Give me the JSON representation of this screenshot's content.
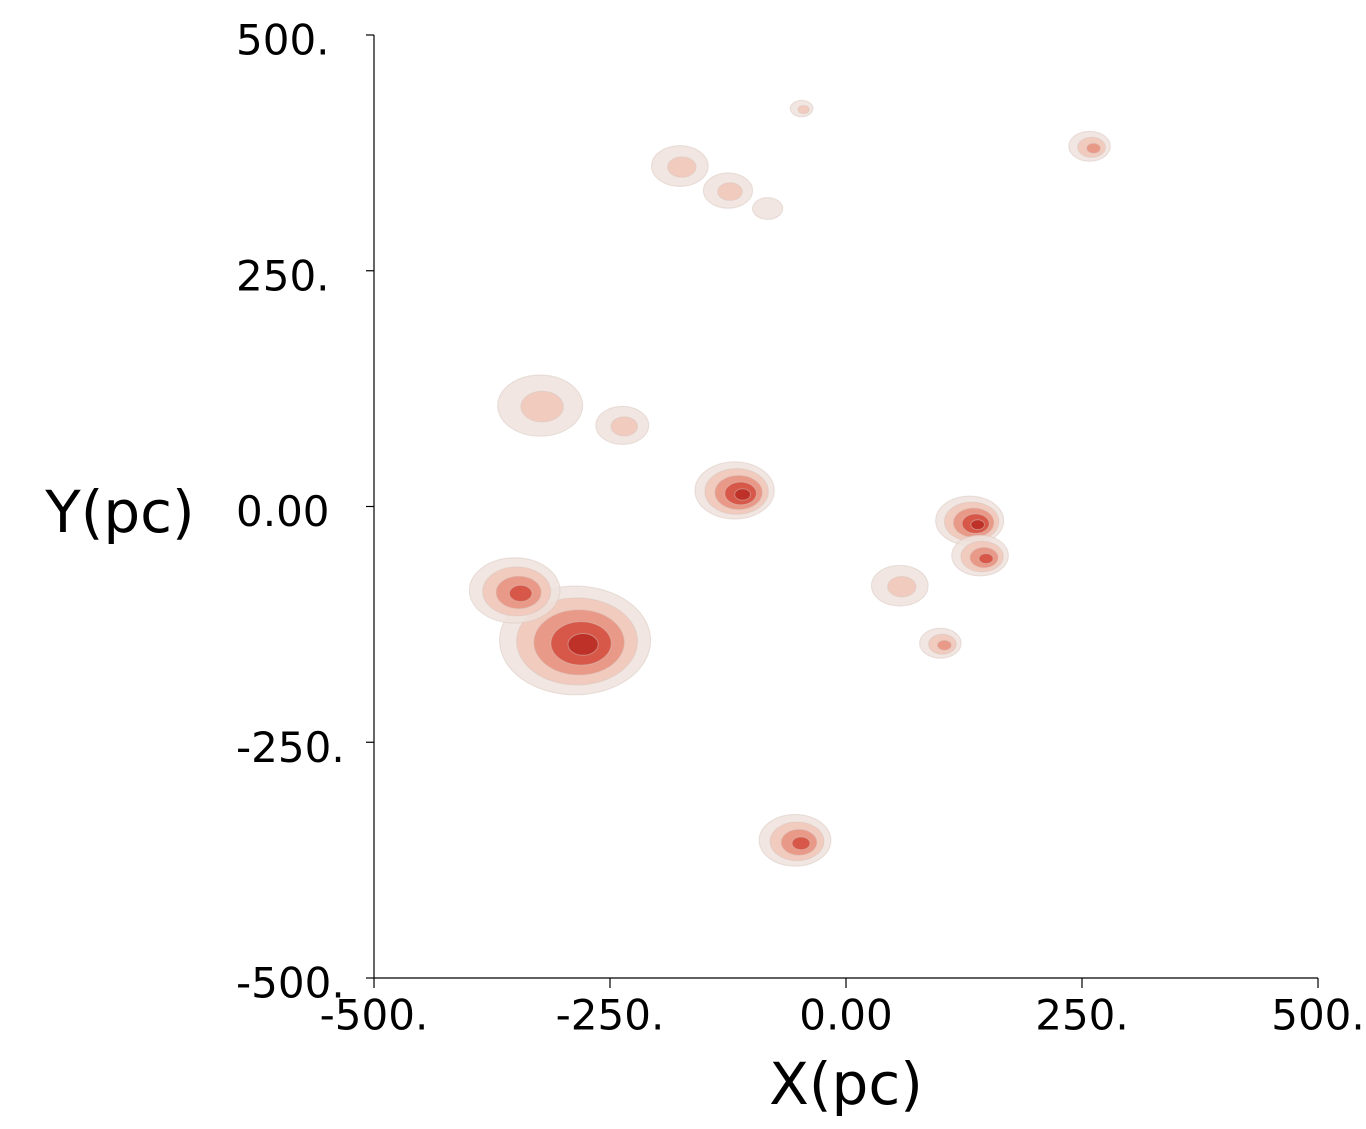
{
  "chart_data": {
    "type": "contour",
    "xlabel": "X(pc)",
    "ylabel": "Y(pc)",
    "xlim": [
      -500,
      500
    ],
    "ylim": [
      -500,
      500
    ],
    "xticks": [
      {
        "value": -500,
        "label": "-500."
      },
      {
        "value": -250,
        "label": "-250."
      },
      {
        "value": 0,
        "label": "0.00"
      },
      {
        "value": 250,
        "label": "250."
      },
      {
        "value": 500,
        "label": "500."
      }
    ],
    "yticks": [
      {
        "value": -500,
        "label": "-500."
      },
      {
        "value": -250,
        "label": "-250."
      },
      {
        "value": 0,
        "label": "0.00"
      },
      {
        "value": 250,
        "label": "250."
      },
      {
        "value": 500,
        "label": "500."
      }
    ],
    "colors": [
      "#efe2dc",
      "#f2c6b8",
      "#e8907e",
      "#d44c3e",
      "#b82a22"
    ],
    "x": [
      -287,
      -351,
      -118,
      131,
      142,
      57,
      100,
      -54,
      -324,
      -237,
      -176,
      -125,
      -83,
      -47,
      258
    ],
    "y": [
      -142,
      -89,
      17,
      -15,
      -52,
      -84,
      -145,
      -354,
      107,
      86,
      361,
      335,
      316,
      422,
      382
    ],
    "size": [
      80,
      48,
      42,
      36,
      30,
      30,
      22,
      38,
      45,
      28,
      30,
      26,
      16,
      12,
      22
    ],
    "level": [
      5,
      4,
      5,
      5,
      4,
      2,
      3,
      4,
      2,
      2,
      2,
      2,
      1,
      2,
      3
    ]
  }
}
